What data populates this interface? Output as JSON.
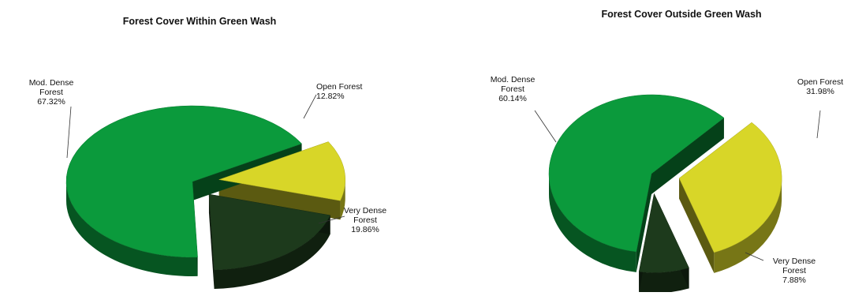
{
  "chart_data": [
    {
      "type": "pie",
      "title": "Forest Cover Within Green Wash",
      "slices": [
        {
          "label": [
            "Open Forest",
            "12.82%"
          ],
          "value": 12.82,
          "color": "#d8d628"
        },
        {
          "label": [
            "Very Dense",
            "Forest",
            "19.86%"
          ],
          "value": 19.86,
          "color": "#1d3a1c"
        },
        {
          "label": [
            "Mod. Dense",
            "Forest",
            "67.32%"
          ],
          "value": 67.32,
          "color": "#0b9a3c"
        }
      ]
    },
    {
      "type": "pie",
      "title": "Forest Cover Outside Green Wash",
      "slices": [
        {
          "label": [
            "Open Forest",
            "31.98%"
          ],
          "value": 31.98,
          "color": "#d8d628"
        },
        {
          "label": [
            "Very Dense",
            "Forest",
            "7.88%"
          ],
          "value": 7.88,
          "color": "#1d3a1c"
        },
        {
          "label": [
            "Mod. Dense",
            "Forest",
            "60.14%"
          ],
          "value": 60.14,
          "color": "#0b9a3c"
        }
      ]
    }
  ]
}
